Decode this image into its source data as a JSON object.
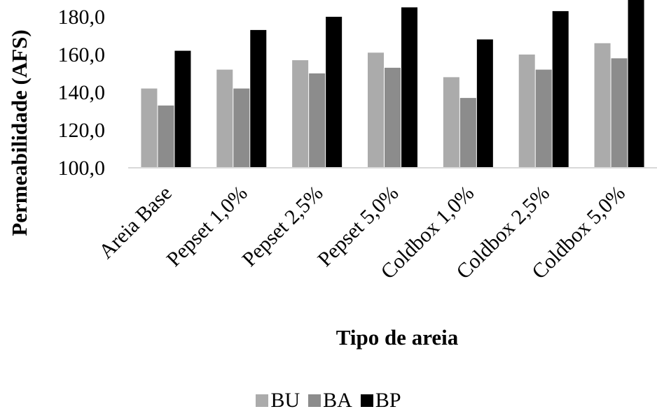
{
  "chart_data": {
    "type": "bar",
    "categories": [
      "Areia Base",
      "Pepset 1,0%",
      "Pepset 2,5%",
      "Pepset 5,0%",
      "Coldbox 1,0%",
      "Coldbox 2,5%",
      "Coldbox 5,0%"
    ],
    "series": [
      {
        "name": "BU",
        "color": "#ababab",
        "values": [
          142,
          152,
          157,
          161,
          148,
          160,
          166
        ]
      },
      {
        "name": "BA",
        "color": "#8c8c8c",
        "values": [
          133,
          142,
          150,
          153,
          137,
          152,
          158
        ]
      },
      {
        "name": "BP",
        "color": "#000000",
        "values": [
          162,
          173,
          180,
          185,
          168,
          183,
          191
        ]
      }
    ],
    "yticks": [
      "100,0",
      "120,0",
      "140,0",
      "160,0",
      "180,0"
    ],
    "ytick_values": [
      100,
      120,
      140,
      160,
      180
    ],
    "ylim": [
      100,
      188
    ],
    "xlabel": "Tipo de areia",
    "ylabel": "Permeabilidade (AFS)",
    "legend_position": "bottom",
    "grid": false
  }
}
